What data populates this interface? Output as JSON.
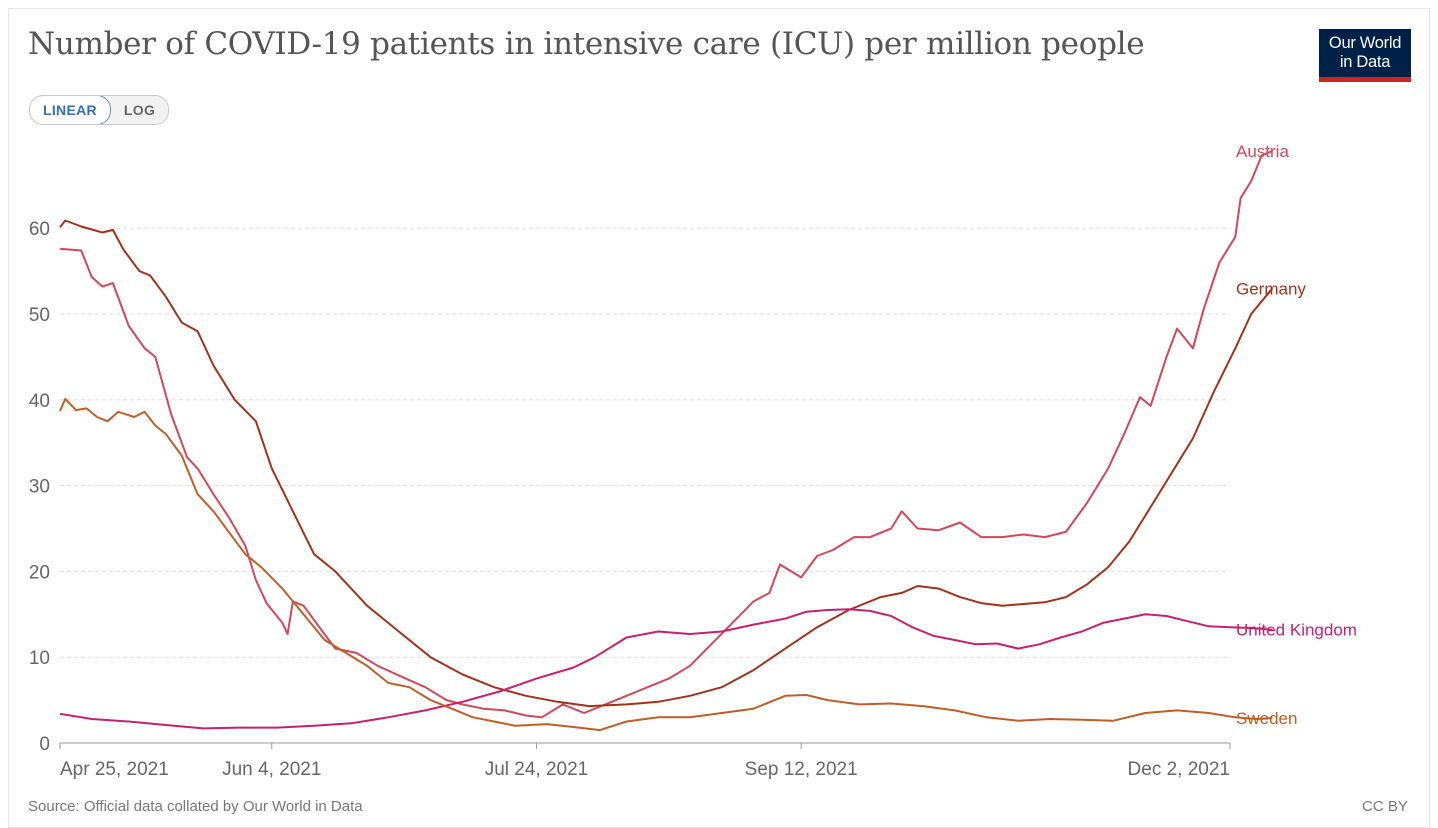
{
  "header": {
    "title": "Number of COVID-19 patients in intensive care (ICU) per million people"
  },
  "logo": {
    "line1": "Our World",
    "line2": "in Data",
    "bg_color": "#002147",
    "bar_color": "#ce261e"
  },
  "scale_toggle": {
    "linear_label": "LINEAR",
    "log_label": "LOG",
    "selected": "LINEAR"
  },
  "footer": {
    "source": "Source: Official data collated by Our World in Data",
    "license": "CC BY"
  },
  "chart_data": {
    "type": "line",
    "title": "Number of COVID-19 patients in intensive care (ICU) per million people",
    "x_range": [
      "2021-04-25",
      "2021-12-02"
    ],
    "x_ticks": [
      {
        "date": "2021-04-25",
        "label": "Apr 25, 2021"
      },
      {
        "date": "2021-06-04",
        "label": "Jun 4, 2021"
      },
      {
        "date": "2021-07-24",
        "label": "Jul 24, 2021"
      },
      {
        "date": "2021-09-12",
        "label": "Sep 12, 2021"
      },
      {
        "date": "2021-12-02",
        "label": "Dec 2, 2021"
      }
    ],
    "ylim": [
      0,
      70
    ],
    "y_ticks": [
      0,
      10,
      20,
      30,
      40,
      50,
      60
    ],
    "grid": "horizontal dashed",
    "legend": "line-end labels",
    "series": [
      {
        "name": "Austria",
        "color": "#d2475a",
        "points": [
          [
            "2021-04-25",
            57.6
          ],
          [
            "2021-04-29",
            57.4
          ],
          [
            "2021-05-01",
            54.3
          ],
          [
            "2021-05-03",
            53.2
          ],
          [
            "2021-05-05",
            53.6
          ],
          [
            "2021-05-08",
            48.6
          ],
          [
            "2021-05-11",
            46.0
          ],
          [
            "2021-05-13",
            45.0
          ],
          [
            "2021-05-16",
            38.3
          ],
          [
            "2021-05-19",
            33.3
          ],
          [
            "2021-05-21",
            32.0
          ],
          [
            "2021-05-24",
            29.0
          ],
          [
            "2021-05-27",
            26.2
          ],
          [
            "2021-05-30",
            23.0
          ],
          [
            "2021-06-01",
            19.0
          ],
          [
            "2021-06-03",
            16.3
          ],
          [
            "2021-06-06",
            14.0
          ],
          [
            "2021-06-07",
            12.7
          ],
          [
            "2021-06-08",
            16.5
          ],
          [
            "2021-06-10",
            16.0
          ],
          [
            "2021-06-13",
            13.5
          ],
          [
            "2021-06-16",
            11.0
          ],
          [
            "2021-06-20",
            10.5
          ],
          [
            "2021-06-24",
            9.0
          ],
          [
            "2021-06-29",
            7.6
          ],
          [
            "2021-07-03",
            6.5
          ],
          [
            "2021-07-07",
            5.0
          ],
          [
            "2021-07-10",
            4.5
          ],
          [
            "2021-07-14",
            4.0
          ],
          [
            "2021-07-18",
            3.8
          ],
          [
            "2021-07-22",
            3.2
          ],
          [
            "2021-07-25",
            3.0
          ],
          [
            "2021-07-29",
            4.5
          ],
          [
            "2021-08-02",
            3.5
          ],
          [
            "2021-08-06",
            4.5
          ],
          [
            "2021-08-10",
            5.5
          ],
          [
            "2021-08-14",
            6.5
          ],
          [
            "2021-08-18",
            7.5
          ],
          [
            "2021-08-22",
            9.0
          ],
          [
            "2021-08-26",
            11.5
          ],
          [
            "2021-08-30",
            14.0
          ],
          [
            "2021-09-03",
            16.5
          ],
          [
            "2021-09-06",
            17.5
          ],
          [
            "2021-09-08",
            20.8
          ],
          [
            "2021-09-12",
            19.3
          ],
          [
            "2021-09-15",
            21.8
          ],
          [
            "2021-09-18",
            22.5
          ],
          [
            "2021-09-22",
            24.0
          ],
          [
            "2021-09-25",
            24.0
          ],
          [
            "2021-09-29",
            25.0
          ],
          [
            "2021-10-01",
            27.0
          ],
          [
            "2021-10-04",
            25.0
          ],
          [
            "2021-10-08",
            24.8
          ],
          [
            "2021-10-12",
            25.7
          ],
          [
            "2021-10-16",
            24.0
          ],
          [
            "2021-10-20",
            24.0
          ],
          [
            "2021-10-24",
            24.3
          ],
          [
            "2021-10-28",
            24.0
          ],
          [
            "2021-11-01",
            24.6
          ],
          [
            "2021-11-05",
            28.0
          ],
          [
            "2021-11-09",
            32.0
          ],
          [
            "2021-11-12",
            36.0
          ],
          [
            "2021-11-15",
            40.3
          ],
          [
            "2021-11-17",
            39.3
          ],
          [
            "2021-11-20",
            45.0
          ],
          [
            "2021-11-22",
            48.3
          ],
          [
            "2021-11-25",
            46.0
          ],
          [
            "2021-11-27",
            50.5
          ],
          [
            "2021-11-30",
            56.0
          ],
          [
            "2021-12-03",
            59.0
          ],
          [
            "2021-12-04",
            63.5
          ],
          [
            "2021-12-06",
            65.5
          ],
          [
            "2021-12-08",
            68.5
          ],
          [
            "2021-12-10",
            69.0
          ]
        ]
      },
      {
        "name": "Germany",
        "color": "#a2331b",
        "points": [
          [
            "2021-04-25",
            60.1
          ],
          [
            "2021-04-26",
            60.9
          ],
          [
            "2021-04-29",
            60.2
          ],
          [
            "2021-05-03",
            59.5
          ],
          [
            "2021-05-05",
            59.8
          ],
          [
            "2021-05-07",
            57.5
          ],
          [
            "2021-05-10",
            55.0
          ],
          [
            "2021-05-12",
            54.5
          ],
          [
            "2021-05-15",
            52.0
          ],
          [
            "2021-05-18",
            49.0
          ],
          [
            "2021-05-21",
            48.0
          ],
          [
            "2021-05-24",
            44.0
          ],
          [
            "2021-05-28",
            40.0
          ],
          [
            "2021-06-01",
            37.5
          ],
          [
            "2021-06-04",
            32.0
          ],
          [
            "2021-06-08",
            27.0
          ],
          [
            "2021-06-12",
            22.0
          ],
          [
            "2021-06-16",
            20.0
          ],
          [
            "2021-06-22",
            16.0
          ],
          [
            "2021-06-28",
            13.0
          ],
          [
            "2021-07-04",
            10.0
          ],
          [
            "2021-07-10",
            8.0
          ],
          [
            "2021-07-16",
            6.5
          ],
          [
            "2021-07-22",
            5.5
          ],
          [
            "2021-07-28",
            4.8
          ],
          [
            "2021-08-03",
            4.3
          ],
          [
            "2021-08-10",
            4.5
          ],
          [
            "2021-08-16",
            4.8
          ],
          [
            "2021-08-22",
            5.5
          ],
          [
            "2021-08-28",
            6.5
          ],
          [
            "2021-09-03",
            8.5
          ],
          [
            "2021-09-09",
            11.0
          ],
          [
            "2021-09-15",
            13.5
          ],
          [
            "2021-09-21",
            15.5
          ],
          [
            "2021-09-27",
            17.0
          ],
          [
            "2021-10-01",
            17.5
          ],
          [
            "2021-10-04",
            18.3
          ],
          [
            "2021-10-08",
            18.0
          ],
          [
            "2021-10-12",
            17.0
          ],
          [
            "2021-10-16",
            16.3
          ],
          [
            "2021-10-20",
            16.0
          ],
          [
            "2021-10-24",
            16.2
          ],
          [
            "2021-10-28",
            16.4
          ],
          [
            "2021-11-01",
            17.0
          ],
          [
            "2021-11-05",
            18.5
          ],
          [
            "2021-11-09",
            20.5
          ],
          [
            "2021-11-13",
            23.5
          ],
          [
            "2021-11-17",
            27.5
          ],
          [
            "2021-11-21",
            31.5
          ],
          [
            "2021-11-25",
            35.5
          ],
          [
            "2021-11-29",
            41.0
          ],
          [
            "2021-12-03",
            46.0
          ],
          [
            "2021-12-06",
            50.0
          ],
          [
            "2021-12-10",
            53.0
          ]
        ]
      },
      {
        "name": "United Kingdom",
        "color": "#c8206e",
        "points": [
          [
            "2021-04-25",
            3.4
          ],
          [
            "2021-05-01",
            2.8
          ],
          [
            "2021-05-08",
            2.5
          ],
          [
            "2021-05-15",
            2.1
          ],
          [
            "2021-05-22",
            1.7
          ],
          [
            "2021-05-29",
            1.8
          ],
          [
            "2021-06-05",
            1.8
          ],
          [
            "2021-06-12",
            2.0
          ],
          [
            "2021-06-19",
            2.3
          ],
          [
            "2021-06-26",
            3.0
          ],
          [
            "2021-07-03",
            3.8
          ],
          [
            "2021-07-10",
            4.8
          ],
          [
            "2021-07-17",
            6.0
          ],
          [
            "2021-07-24",
            7.5
          ],
          [
            "2021-07-31",
            8.8
          ],
          [
            "2021-08-04",
            10.0
          ],
          [
            "2021-08-10",
            12.3
          ],
          [
            "2021-08-16",
            13.0
          ],
          [
            "2021-08-22",
            12.7
          ],
          [
            "2021-08-28",
            13.0
          ],
          [
            "2021-09-03",
            13.8
          ],
          [
            "2021-09-09",
            14.5
          ],
          [
            "2021-09-13",
            15.3
          ],
          [
            "2021-09-17",
            15.5
          ],
          [
            "2021-09-21",
            15.6
          ],
          [
            "2021-09-25",
            15.4
          ],
          [
            "2021-09-29",
            14.8
          ],
          [
            "2021-10-03",
            13.5
          ],
          [
            "2021-10-07",
            12.5
          ],
          [
            "2021-10-11",
            12.0
          ],
          [
            "2021-10-15",
            11.5
          ],
          [
            "2021-10-19",
            11.6
          ],
          [
            "2021-10-23",
            11.0
          ],
          [
            "2021-10-27",
            11.5
          ],
          [
            "2021-10-31",
            12.3
          ],
          [
            "2021-11-04",
            13.0
          ],
          [
            "2021-11-08",
            14.0
          ],
          [
            "2021-11-12",
            14.5
          ],
          [
            "2021-11-16",
            15.0
          ],
          [
            "2021-11-20",
            14.8
          ],
          [
            "2021-11-24",
            14.2
          ],
          [
            "2021-11-28",
            13.6
          ],
          [
            "2021-12-02",
            13.5
          ],
          [
            "2021-12-06",
            13.4
          ],
          [
            "2021-12-10",
            13.2
          ]
        ]
      },
      {
        "name": "Sweden",
        "color": "#c15e27",
        "points": [
          [
            "2021-04-25",
            38.7
          ],
          [
            "2021-04-26",
            40.1
          ],
          [
            "2021-04-28",
            38.8
          ],
          [
            "2021-04-30",
            39.0
          ],
          [
            "2021-05-02",
            38.0
          ],
          [
            "2021-05-04",
            37.5
          ],
          [
            "2021-05-06",
            38.6
          ],
          [
            "2021-05-09",
            38.0
          ],
          [
            "2021-05-11",
            38.6
          ],
          [
            "2021-05-13",
            37.0
          ],
          [
            "2021-05-15",
            36.0
          ],
          [
            "2021-05-18",
            33.5
          ],
          [
            "2021-05-21",
            29.0
          ],
          [
            "2021-05-24",
            27.0
          ],
          [
            "2021-05-27",
            24.5
          ],
          [
            "2021-05-30",
            22.0
          ],
          [
            "2021-06-02",
            20.5
          ],
          [
            "2021-06-06",
            18.0
          ],
          [
            "2021-06-10",
            15.0
          ],
          [
            "2021-06-14",
            12.0
          ],
          [
            "2021-06-18",
            10.5
          ],
          [
            "2021-06-22",
            9.0
          ],
          [
            "2021-06-26",
            7.0
          ],
          [
            "2021-06-30",
            6.5
          ],
          [
            "2021-07-04",
            5.0
          ],
          [
            "2021-07-08",
            4.0
          ],
          [
            "2021-07-12",
            3.0
          ],
          [
            "2021-07-16",
            2.5
          ],
          [
            "2021-07-20",
            2.0
          ],
          [
            "2021-07-26",
            2.2
          ],
          [
            "2021-08-01",
            1.8
          ],
          [
            "2021-08-05",
            1.5
          ],
          [
            "2021-08-10",
            2.5
          ],
          [
            "2021-08-16",
            3.0
          ],
          [
            "2021-08-22",
            3.0
          ],
          [
            "2021-08-28",
            3.5
          ],
          [
            "2021-09-03",
            4.0
          ],
          [
            "2021-09-09",
            5.5
          ],
          [
            "2021-09-13",
            5.6
          ],
          [
            "2021-09-17",
            5.0
          ],
          [
            "2021-09-23",
            4.5
          ],
          [
            "2021-09-29",
            4.6
          ],
          [
            "2021-10-05",
            4.3
          ],
          [
            "2021-10-11",
            3.8
          ],
          [
            "2021-10-17",
            3.0
          ],
          [
            "2021-10-23",
            2.6
          ],
          [
            "2021-10-29",
            2.8
          ],
          [
            "2021-11-04",
            2.7
          ],
          [
            "2021-11-10",
            2.6
          ],
          [
            "2021-11-16",
            3.5
          ],
          [
            "2021-11-22",
            3.8
          ],
          [
            "2021-11-28",
            3.5
          ],
          [
            "2021-12-03",
            3.0
          ],
          [
            "2021-12-07",
            2.8
          ],
          [
            "2021-12-10",
            2.9
          ]
        ]
      }
    ]
  }
}
